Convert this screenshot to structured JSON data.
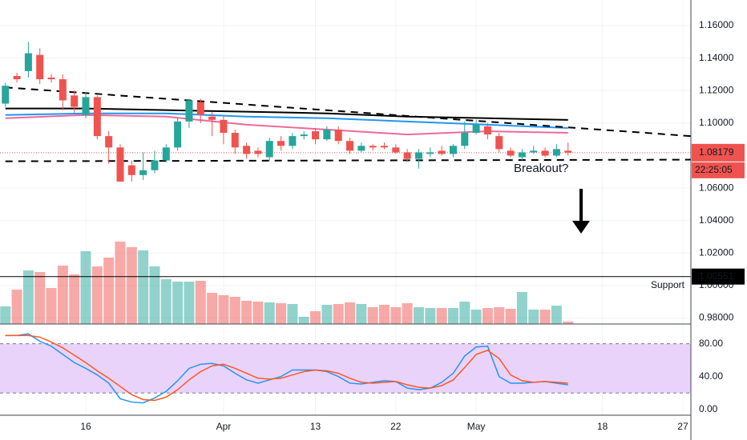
{
  "chart_data": [
    {
      "type": "candlestick",
      "x": [
        0,
        1,
        2,
        3,
        4,
        5,
        6,
        7,
        8,
        9,
        10,
        11,
        12,
        13,
        14,
        15,
        16,
        17,
        18,
        19,
        20,
        21,
        22,
        23,
        24,
        25,
        26,
        27,
        28,
        29,
        30,
        31,
        32,
        33,
        34,
        35,
        36,
        37,
        38,
        39,
        40,
        41,
        42,
        43,
        44,
        45,
        46,
        47,
        48,
        49
      ],
      "open": [
        1.112,
        1.129,
        1.132,
        1.142,
        1.128,
        1.127,
        1.117,
        1.105,
        1.116,
        1.092,
        1.085,
        1.074,
        1.068,
        1.071,
        1.077,
        1.085,
        1.101,
        1.113,
        1.104,
        1.102,
        1.094,
        1.086,
        1.083,
        1.079,
        1.089,
        1.086,
        1.092,
        1.095,
        1.09,
        1.096,
        1.089,
        1.083,
        1.086,
        1.086,
        1.085,
        1.082,
        1.078,
        1.081,
        1.083,
        1.081,
        1.086,
        1.094,
        1.098,
        1.092,
        1.083,
        1.079,
        1.082,
        1.083,
        1.08,
        1.083
      ],
      "high": [
        1.125,
        1.131,
        1.15,
        1.146,
        1.13,
        1.13,
        1.12,
        1.119,
        1.117,
        1.095,
        1.087,
        1.077,
        1.082,
        1.083,
        1.087,
        1.103,
        1.115,
        1.115,
        1.107,
        1.104,
        1.096,
        1.088,
        1.085,
        1.091,
        1.092,
        1.094,
        1.095,
        1.097,
        1.098,
        1.098,
        1.091,
        1.088,
        1.087,
        1.088,
        1.087,
        1.084,
        1.084,
        1.085,
        1.086,
        1.087,
        1.101,
        1.102,
        1.1,
        1.094,
        1.085,
        1.084,
        1.086,
        1.085,
        1.087,
        1.088
      ],
      "low": [
        1.11,
        1.125,
        1.128,
        1.124,
        1.125,
        1.108,
        1.106,
        1.103,
        1.09,
        1.075,
        1.064,
        1.064,
        1.065,
        1.069,
        1.076,
        1.083,
        1.097,
        1.1,
        1.092,
        1.087,
        1.081,
        1.078,
        1.079,
        1.077,
        1.083,
        1.084,
        1.09,
        1.087,
        1.089,
        1.087,
        1.081,
        1.082,
        1.083,
        1.084,
        1.081,
        1.076,
        1.072,
        1.079,
        1.08,
        1.079,
        1.084,
        1.093,
        1.09,
        1.082,
        1.079,
        1.077,
        1.081,
        1.079,
        1.079,
        1.08
      ],
      "close": [
        1.123,
        1.127,
        1.143,
        1.127,
        1.127,
        1.114,
        1.11,
        1.116,
        1.092,
        1.085,
        1.064,
        1.068,
        1.071,
        1.077,
        1.085,
        1.101,
        1.114,
        1.105,
        1.102,
        1.094,
        1.085,
        1.081,
        1.081,
        1.089,
        1.086,
        1.092,
        1.093,
        1.09,
        1.096,
        1.089,
        1.083,
        1.086,
        1.085,
        1.085,
        1.082,
        1.078,
        1.082,
        1.082,
        1.081,
        1.086,
        1.094,
        1.099,
        1.093,
        1.084,
        1.08,
        1.082,
        1.083,
        1.08,
        1.084,
        1.08179
      ],
      "up_color": "#26a69a",
      "down_color": "#ef5350",
      "volume": {
        "values": [
          22,
          43,
          67,
          65,
          45,
          73,
          62,
          91,
          72,
          83,
          103,
          96,
          92,
          72,
          56,
          53,
          53,
          54,
          39,
          36,
          34,
          29,
          28,
          27,
          26,
          25,
          9,
          16,
          24,
          25,
          27,
          25,
          21,
          24,
          21,
          26,
          21,
          20,
          20,
          20,
          28,
          18,
          20,
          21,
          19,
          40,
          18,
          18,
          23,
          3
        ],
        "opacity": 0.5
      },
      "moving_averages": [
        {
          "color": "#000000",
          "x": [
            0,
            7,
            14,
            21,
            28,
            35,
            42,
            49
          ],
          "values": [
            1.109,
            1.109,
            1.108,
            1.107,
            1.106,
            1.104,
            1.103,
            1.102
          ]
        },
        {
          "color": "#2196f3",
          "x": [
            0,
            7,
            14,
            21,
            28,
            35,
            42,
            49
          ],
          "values": [
            1.105,
            1.106,
            1.106,
            1.104,
            1.103,
            1.101,
            1.099,
            1.097
          ]
        },
        {
          "color": "#ec6a9a",
          "x": [
            0,
            7,
            14,
            21,
            28,
            35,
            42,
            49
          ],
          "values": [
            1.103,
            1.105,
            1.104,
            1.099,
            1.096,
            1.093,
            1.095,
            1.094
          ]
        }
      ],
      "trendlines": [
        {
          "x": [
            0,
            59.7
          ],
          "values": [
            1.122,
            1.092
          ]
        },
        {
          "x": [
            0,
            59.7
          ],
          "values": [
            1.0765,
            1.0775
          ]
        }
      ],
      "last_price": {
        "value": 1.08179,
        "label": "1.08179",
        "countdown": "22:25:05",
        "color": "#ef5350"
      },
      "support": {
        "value": 1.00551,
        "label": "1.00551",
        "text": "Support"
      },
      "annotations": [
        {
          "text": "Breakout?"
        }
      ],
      "xlim": [
        -0.47,
        59.7
      ],
      "xticks": [
        {
          "value": 7,
          "label": "16"
        },
        {
          "value": 19,
          "label": "Apr"
        },
        {
          "value": 27,
          "label": "13"
        },
        {
          "value": 34,
          "label": "22"
        },
        {
          "value": 41,
          "label": "May"
        },
        {
          "value": 52,
          "label": "18"
        },
        {
          "value": 59,
          "label": "27"
        }
      ],
      "ylim": [
        0.9763,
        1.1758
      ],
      "yticks": [
        {
          "value": 0.98,
          "label": "0.98000"
        },
        {
          "value": 1.0,
          "label": "1.00000"
        },
        {
          "value": 1.02,
          "label": "1.02000"
        },
        {
          "value": 1.04,
          "label": "1.04000"
        },
        {
          "value": 1.06,
          "label": "1.06000"
        },
        {
          "value": 1.1,
          "label": "1.10000"
        },
        {
          "value": 1.12,
          "label": "1.12000"
        },
        {
          "value": 1.14,
          "label": "1.14000"
        },
        {
          "value": 1.16,
          "label": "1.16000"
        }
      ],
      "grid": true
    },
    {
      "type": "line",
      "x": [
        0,
        1,
        2,
        3,
        4,
        5,
        6,
        7,
        8,
        9,
        10,
        11,
        12,
        13,
        14,
        15,
        16,
        17,
        18,
        19,
        20,
        21,
        22,
        23,
        24,
        25,
        26,
        27,
        28,
        29,
        30,
        31,
        32,
        33,
        34,
        35,
        36,
        37,
        38,
        39,
        40,
        41,
        42,
        43,
        44,
        45,
        46,
        47,
        48,
        49
      ],
      "series": [
        {
          "color": "#2196f3",
          "values": [
            90,
            90,
            92,
            83,
            77,
            67,
            57,
            50,
            42,
            32,
            13,
            9,
            8,
            14,
            22,
            35,
            50,
            55,
            56,
            53,
            44,
            36,
            32,
            36,
            40,
            48,
            48,
            48,
            46,
            40,
            32,
            31,
            33,
            35,
            34,
            26,
            24,
            26,
            33,
            44,
            65,
            76,
            77,
            40,
            32,
            32,
            33,
            34,
            32,
            30
          ]
        },
        {
          "color": "#ff5722",
          "values": [
            90,
            90,
            90,
            88,
            82,
            75,
            66,
            57,
            47,
            38,
            28,
            18,
            12,
            11,
            15,
            24,
            36,
            46,
            53,
            55,
            50,
            44,
            38,
            37,
            38,
            42,
            46,
            48,
            47,
            44,
            38,
            33,
            32,
            33,
            34,
            30,
            27,
            26,
            29,
            36,
            51,
            67,
            72,
            62,
            42,
            35,
            33,
            34,
            33,
            32
          ]
        }
      ],
      "band": [
        20,
        80
      ],
      "band_color": "#e9d3fb",
      "xlim": [
        -0.47,
        59.7
      ],
      "ylim": [
        -7,
        104
      ],
      "yticks": [
        {
          "value": 0,
          "label": "0.00"
        },
        {
          "value": 40,
          "label": "40.00"
        },
        {
          "value": 80,
          "label": "80.00"
        }
      ]
    }
  ]
}
